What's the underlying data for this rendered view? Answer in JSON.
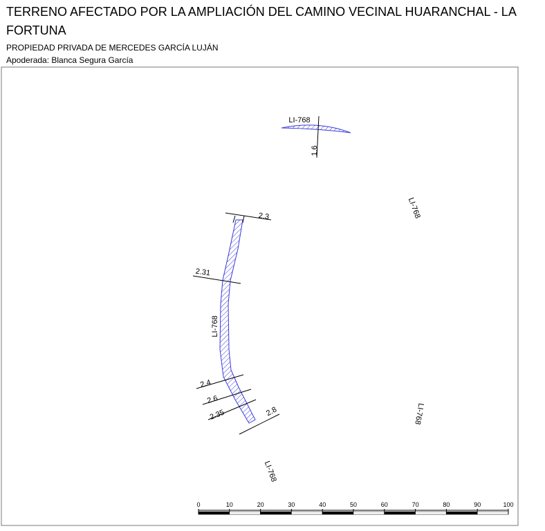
{
  "header": {
    "title": "TERRENO AFECTADO POR LA AMPLIACIÓN DEL CAMINO VECINAL HUARANCHAL - LA FORTUNA",
    "owner": "PROPIEDAD PRIVADA DE MERCEDES GARCÍA LUJÁN",
    "agent": "Apoderada: Blanca Segura García"
  },
  "map": {
    "road_labels": [
      "LI-768",
      "LI-768",
      "LI-768",
      "LI-768",
      "LI-768"
    ],
    "dimensions": [
      1.6,
      2.3,
      2.31,
      2.4,
      2.6,
      2.35,
      2.8
    ],
    "scale_ticks": [
      0,
      10,
      20,
      30,
      40,
      50,
      60,
      70,
      80,
      90,
      100
    ]
  }
}
